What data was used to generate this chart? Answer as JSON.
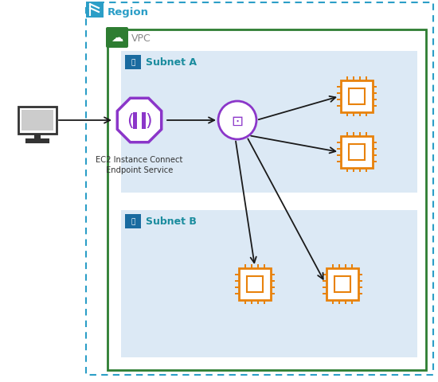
{
  "fig_width": 5.5,
  "fig_height": 4.81,
  "dpi": 100,
  "bg_color": "#ffffff",
  "region_border_color": "#2B9EC7",
  "vpc_border_color": "#2E7D32",
  "subnet_bg_color": "#dce9f5",
  "blue_icon_color": "#1A6BA0",
  "subnet_a_label": "Subnet A",
  "subnet_b_label": "Subnet B",
  "vpc_label": "VPC",
  "region_label": "Region",
  "endpoint_service_label": "EC2 Instance Connect\nEndpoint Service",
  "arrow_color": "#1a1a1a",
  "orange_color": "#E8820C",
  "purple_color": "#8B36C9",
  "teal_color": "#1A8C9E",
  "green_icon_color": "#2E7D32",
  "gray_text": "#888888",
  "comp_color": "#333333"
}
